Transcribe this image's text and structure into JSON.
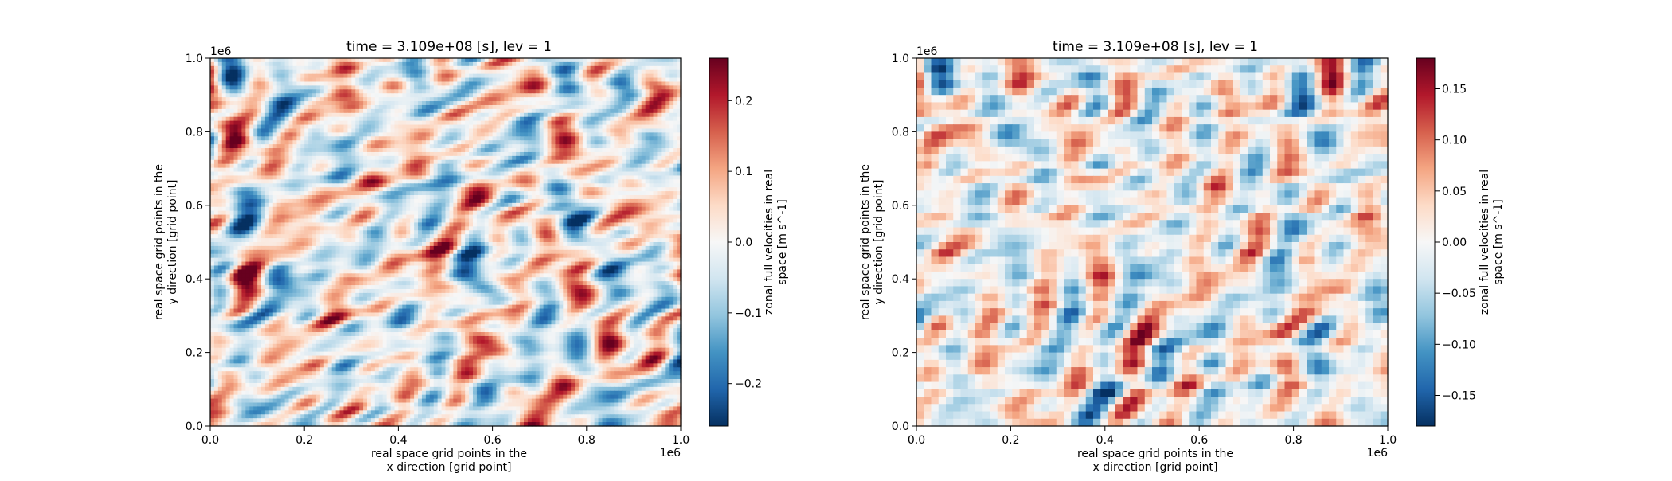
{
  "chart_data": [
    {
      "type": "heatmap",
      "title": "time = 3.109e+08 [s], lev = 1",
      "xlabel": [
        "real space grid points in the",
        "x direction [grid point]"
      ],
      "ylabel": [
        "real space grid points in the",
        "y direction [grid point]"
      ],
      "x_offset_text": "1e6",
      "y_offset_text": "1e6",
      "xlim": [
        0,
        1
      ],
      "ylim": [
        0,
        1
      ],
      "xticks": [
        "0.0",
        "0.2",
        "0.4",
        "0.6",
        "0.8",
        "1.0"
      ],
      "yticks": [
        "0.0",
        "0.2",
        "0.4",
        "0.6",
        "0.8",
        "1.0"
      ],
      "colorbar": {
        "label": [
          "zonal full velocities in real",
          "space [m s^-1]"
        ],
        "range": [
          -0.26,
          0.26
        ],
        "ticks": [
          -0.2,
          -0.1,
          0.0,
          0.1,
          0.2
        ],
        "tick_labels": [
          "−0.2",
          "−0.1",
          "0.0",
          "0.1",
          "0.2"
        ],
        "colormap": "RdBu_r"
      },
      "grid": false,
      "resolution": "fine",
      "field_seed": 3
    },
    {
      "type": "heatmap",
      "title": "time = 3.109e+08 [s], lev = 1",
      "xlabel": [
        "real space grid points in the",
        "x direction [grid point]"
      ],
      "ylabel": [
        "real space grid points in the",
        "y direction [grid point]"
      ],
      "x_offset_text": "1e6",
      "y_offset_text": "1e6",
      "xlim": [
        0,
        1
      ],
      "ylim": [
        0,
        1
      ],
      "xticks": [
        "0.0",
        "0.2",
        "0.4",
        "0.6",
        "0.8",
        "1.0"
      ],
      "yticks": [
        "0.0",
        "0.2",
        "0.4",
        "0.6",
        "0.8",
        "1.0"
      ],
      "colorbar": {
        "label": [
          "zonal full velocities in real",
          "space [m s^-1]"
        ],
        "range": [
          -0.18,
          0.18
        ],
        "ticks": [
          -0.15,
          -0.1,
          -0.05,
          0.0,
          0.05,
          0.1,
          0.15
        ],
        "tick_labels": [
          "−0.15",
          "−0.10",
          "−0.05",
          "0.00",
          "0.05",
          "0.10",
          "0.15"
        ],
        "colormap": "RdBu_r"
      },
      "grid": false,
      "resolution": "coarse",
      "field_seed": 11
    }
  ]
}
